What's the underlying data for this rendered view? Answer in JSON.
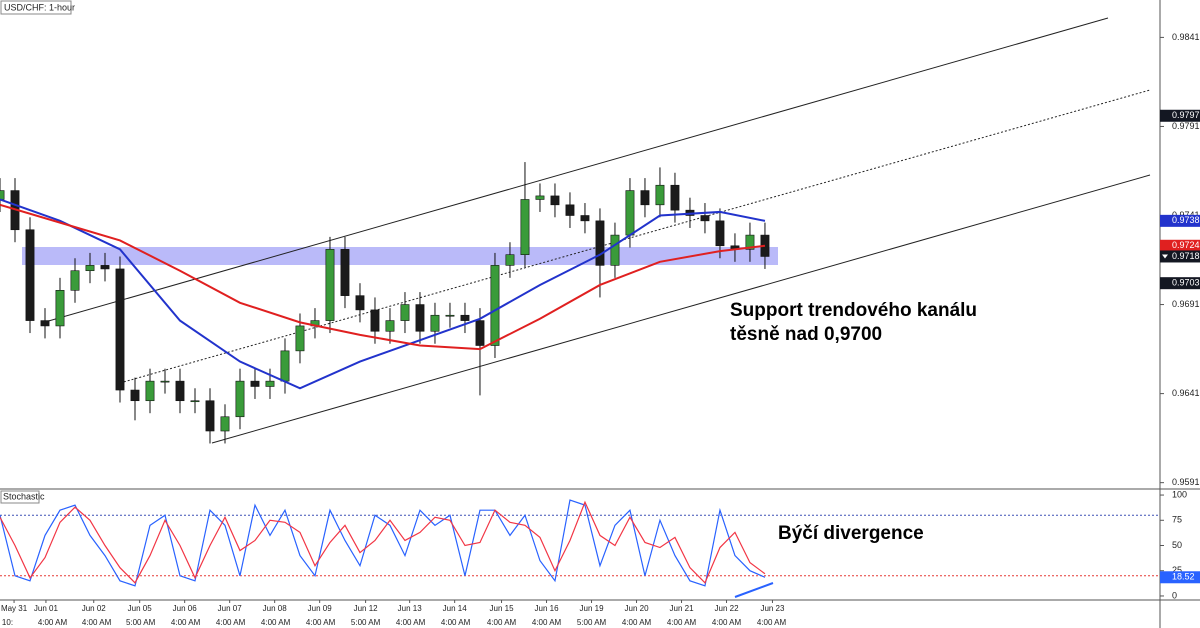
{
  "chart_data": [
    {
      "type": "candlestick",
      "title": "USD/CHF: 1-hour",
      "x": [
        0,
        8,
        16,
        24,
        32,
        40,
        48,
        56,
        64,
        72,
        80,
        88,
        96,
        104,
        112,
        120,
        128,
        136,
        144,
        152,
        160,
        168,
        176,
        184,
        192,
        200,
        208,
        216,
        224,
        232,
        240,
        248,
        256,
        264,
        272,
        280,
        288,
        296,
        304,
        312,
        320,
        328,
        336,
        344,
        352,
        360,
        368,
        376,
        384,
        392,
        400,
        408
      ],
      "open": [
        0.975,
        0.9755,
        0.9733,
        0.9682,
        0.9679,
        0.9699,
        0.971,
        0.9713,
        0.9711,
        0.9643,
        0.9637,
        0.9648,
        0.9648,
        0.9637,
        0.9637,
        0.962,
        0.9628,
        0.9648,
        0.9645,
        0.9648,
        0.9665,
        0.9679,
        0.9682,
        0.9722,
        0.9696,
        0.9688,
        0.9676,
        0.9682,
        0.9691,
        0.9676,
        0.9685,
        0.9685,
        0.9682,
        0.9668,
        0.9713,
        0.9719,
        0.975,
        0.9752,
        0.9747,
        0.9741,
        0.9738,
        0.9713,
        0.973,
        0.9755,
        0.9747,
        0.9758,
        0.9744,
        0.9741,
        0.9738,
        0.9724,
        0.9722,
        0.973
      ],
      "high": [
        0.9762,
        0.9762,
        0.974,
        0.9689,
        0.9706,
        0.9717,
        0.972,
        0.972,
        0.9718,
        0.965,
        0.9655,
        0.9655,
        0.9655,
        0.9644,
        0.9644,
        0.9635,
        0.9655,
        0.9655,
        0.9655,
        0.9672,
        0.9686,
        0.9689,
        0.9729,
        0.9729,
        0.9703,
        0.9695,
        0.9689,
        0.9698,
        0.9698,
        0.9692,
        0.9692,
        0.9692,
        0.9689,
        0.972,
        0.9726,
        0.9771,
        0.9759,
        0.9759,
        0.9754,
        0.9748,
        0.9745,
        0.9737,
        0.9762,
        0.9762,
        0.9768,
        0.9765,
        0.9751,
        0.9748,
        0.9745,
        0.9731,
        0.9737,
        0.9737
      ],
      "low": [
        0.9743,
        0.9726,
        0.9675,
        0.9672,
        0.9672,
        0.9692,
        0.9703,
        0.9704,
        0.9636,
        0.9626,
        0.963,
        0.9641,
        0.963,
        0.963,
        0.9613,
        0.9613,
        0.9621,
        0.9638,
        0.9638,
        0.9641,
        0.9658,
        0.9672,
        0.9675,
        0.9689,
        0.9681,
        0.9669,
        0.9669,
        0.9675,
        0.9669,
        0.9669,
        0.9678,
        0.9675,
        0.964,
        0.9661,
        0.9706,
        0.9712,
        0.9743,
        0.974,
        0.9734,
        0.9731,
        0.9695,
        0.9706,
        0.9723,
        0.974,
        0.974,
        0.9737,
        0.9734,
        0.9731,
        0.9717,
        0.9715,
        0.9715,
        0.9711
      ],
      "close": [
        0.9755,
        0.9733,
        0.9682,
        0.9679,
        0.9699,
        0.971,
        0.9713,
        0.9711,
        0.9643,
        0.9637,
        0.9648,
        0.9648,
        0.9637,
        0.9637,
        0.962,
        0.9628,
        0.9648,
        0.9645,
        0.9648,
        0.9665,
        0.9679,
        0.9682,
        0.9722,
        0.9696,
        0.9688,
        0.9676,
        0.9682,
        0.9691,
        0.9676,
        0.9685,
        0.9685,
        0.9682,
        0.9668,
        0.9713,
        0.9719,
        0.975,
        0.9752,
        0.9747,
        0.9741,
        0.9738,
        0.9713,
        0.973,
        0.9755,
        0.9747,
        0.9758,
        0.9744,
        0.9741,
        0.9738,
        0.9724,
        0.9722,
        0.973,
        0.9718
      ],
      "up_color": "#3a9b3a",
      "down_color": "#1b1b1b",
      "series": [
        {
          "color": "#2233cc",
          "x": [
            0,
            32,
            64,
            96,
            128,
            160,
            192,
            224,
            256,
            288,
            320,
            352,
            384,
            408
          ],
          "values": [
            0.975,
            0.9738,
            0.9722,
            0.9682,
            0.9659,
            0.9644,
            0.9659,
            0.9671,
            0.9683,
            0.9702,
            0.9719,
            0.9741,
            0.9743,
            0.9738
          ]
        },
        {
          "color": "#e02020",
          "x": [
            0,
            32,
            64,
            96,
            128,
            160,
            192,
            224,
            256,
            288,
            320,
            352,
            384,
            408
          ],
          "values": [
            0.9747,
            0.9737,
            0.9727,
            0.971,
            0.9692,
            0.9681,
            0.9674,
            0.9668,
            0.9666,
            0.9683,
            0.9702,
            0.9715,
            0.9721,
            0.9724
          ]
        }
      ],
      "price_labels": [
        0.9797,
        0.9703
      ],
      "annotation_lines": [
        "Support trendového kanálu",
        "těsně nad 0,9700"
      ],
      "xlim": [
        0,
        618.7
      ],
      "ylim": [
        0.9588,
        0.9862
      ],
      "yticks": [
        0.9841,
        0.9791,
        0.9741,
        0.9691,
        0.9641,
        0.9591
      ]
    },
    {
      "type": "line",
      "title": "Stochastic",
      "x": [
        0,
        8,
        16,
        24,
        32,
        40,
        48,
        56,
        64,
        72,
        80,
        88,
        96,
        104,
        112,
        120,
        128,
        136,
        144,
        152,
        160,
        168,
        176,
        184,
        192,
        200,
        208,
        216,
        224,
        232,
        240,
        248,
        256,
        264,
        272,
        280,
        288,
        296,
        304,
        312,
        320,
        328,
        336,
        344,
        352,
        360,
        368,
        376,
        384,
        392,
        400,
        408
      ],
      "series": [
        {
          "color": "#2962ff",
          "values": [
            80,
            20,
            15,
            60,
            85,
            90,
            60,
            40,
            15,
            10,
            70,
            80,
            20,
            15,
            85,
            70,
            20,
            90,
            60,
            85,
            40,
            20,
            85,
            55,
            30,
            80,
            70,
            40,
            85,
            70,
            80,
            20,
            85,
            85,
            60,
            80,
            35,
            15,
            95,
            90,
            30,
            70,
            85,
            20,
            75,
            40,
            15,
            10,
            85,
            40,
            25,
            18.52
          ]
        },
        {
          "color": "#f23645",
          "values": [
            78,
            50,
            18,
            38,
            73,
            88,
            75,
            50,
            28,
            13,
            40,
            75,
            50,
            18,
            50,
            78,
            45,
            55,
            75,
            73,
            63,
            30,
            53,
            70,
            43,
            55,
            75,
            55,
            63,
            78,
            75,
            50,
            53,
            85,
            73,
            70,
            58,
            25,
            55,
            93,
            60,
            50,
            78,
            53,
            48,
            58,
            28,
            13,
            48,
            63,
            33,
            22
          ]
        }
      ],
      "levels": [
        {
          "value": 80,
          "color": "#3f51b5"
        },
        {
          "value": 20,
          "color": "#e53935"
        }
      ],
      "annotation": "Býčí divergence",
      "xlim": [
        0,
        618.7
      ],
      "ylim": [
        -4,
        105
      ],
      "yticks": [
        0,
        25,
        50,
        75,
        100
      ],
      "xticks": [
        {
          "value": 7.5,
          "label": "May 31"
        },
        {
          "value": 24.5,
          "label": "Jun 01"
        },
        {
          "value": 50,
          "label": "Jun 02"
        },
        {
          "value": 74.5,
          "label": "Jun 05"
        },
        {
          "value": 98.5,
          "label": "Jun 06"
        },
        {
          "value": 122.5,
          "label": "Jun 07"
        },
        {
          "value": 146.5,
          "label": "Jun 08"
        },
        {
          "value": 170.5,
          "label": "Jun 09"
        },
        {
          "value": 195,
          "label": "Jun 12"
        },
        {
          "value": 218.5,
          "label": "Jun 13"
        },
        {
          "value": 242.5,
          "label": "Jun 14"
        },
        {
          "value": 267.5,
          "label": "Jun 15"
        },
        {
          "value": 291.5,
          "label": "Jun 16"
        },
        {
          "value": 315.5,
          "label": "Jun 19"
        },
        {
          "value": 339.5,
          "label": "Jun 20"
        },
        {
          "value": 363.5,
          "label": "Jun 21"
        },
        {
          "value": 387.5,
          "label": "Jun 22"
        },
        {
          "value": 412,
          "label": "Jun 23"
        }
      ],
      "xticks2": [
        {
          "value": 4,
          "label": "10:"
        },
        {
          "value": 28,
          "label": "4:00 AM"
        },
        {
          "value": 51.5,
          "label": "4:00 AM"
        },
        {
          "value": 75,
          "label": "5:00 AM"
        },
        {
          "value": 99,
          "label": "4:00 AM"
        },
        {
          "value": 123,
          "label": "4:00 AM"
        },
        {
          "value": 147,
          "label": "4:00 AM"
        },
        {
          "value": 171,
          "label": "4:00 AM"
        },
        {
          "value": 195,
          "label": "5:00 AM"
        },
        {
          "value": 219,
          "label": "4:00 AM"
        },
        {
          "value": 243,
          "label": "4:00 AM"
        },
        {
          "value": 267.5,
          "label": "4:00 AM"
        },
        {
          "value": 291.5,
          "label": "4:00 AM"
        },
        {
          "value": 315.5,
          "label": "5:00 AM"
        },
        {
          "value": 339.5,
          "label": "4:00 AM"
        },
        {
          "value": 363.5,
          "label": "4:00 AM"
        },
        {
          "value": 387.5,
          "label": "4:00 AM"
        },
        {
          "value": 411.5,
          "label": "4:00 AM"
        }
      ]
    }
  ]
}
